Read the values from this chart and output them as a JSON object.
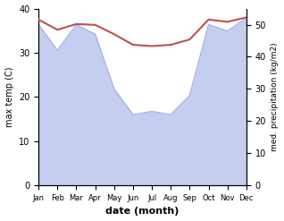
{
  "months": [
    "Jan",
    "Feb",
    "Mar",
    "Apr",
    "May",
    "Jun",
    "Jul",
    "Aug",
    "Sep",
    "Oct",
    "Nov",
    "Dec"
  ],
  "max_temp": [
    37.5,
    35.2,
    36.5,
    36.3,
    34.2,
    31.8,
    31.5,
    31.8,
    33.0,
    37.5,
    37.0,
    38.0
  ],
  "precipitation": [
    50,
    42,
    50,
    47,
    30,
    22,
    23,
    22,
    28,
    50,
    48,
    52
  ],
  "temp_color": "#c0504d",
  "precip_fill_color": "#c5cef0",
  "precip_line_color": "#a8b4e0",
  "temp_ylim": [
    0,
    40
  ],
  "precip_ylim": [
    0,
    55
  ],
  "temp_yticks": [
    0,
    10,
    20,
    30,
    40
  ],
  "precip_yticks": [
    0,
    10,
    20,
    30,
    40,
    50
  ],
  "ylabel_left": "max temp (C)",
  "ylabel_right": "med. precipitation (kg/m2)",
  "xlabel": "date (month)",
  "figsize": [
    3.18,
    2.47
  ],
  "dpi": 100
}
